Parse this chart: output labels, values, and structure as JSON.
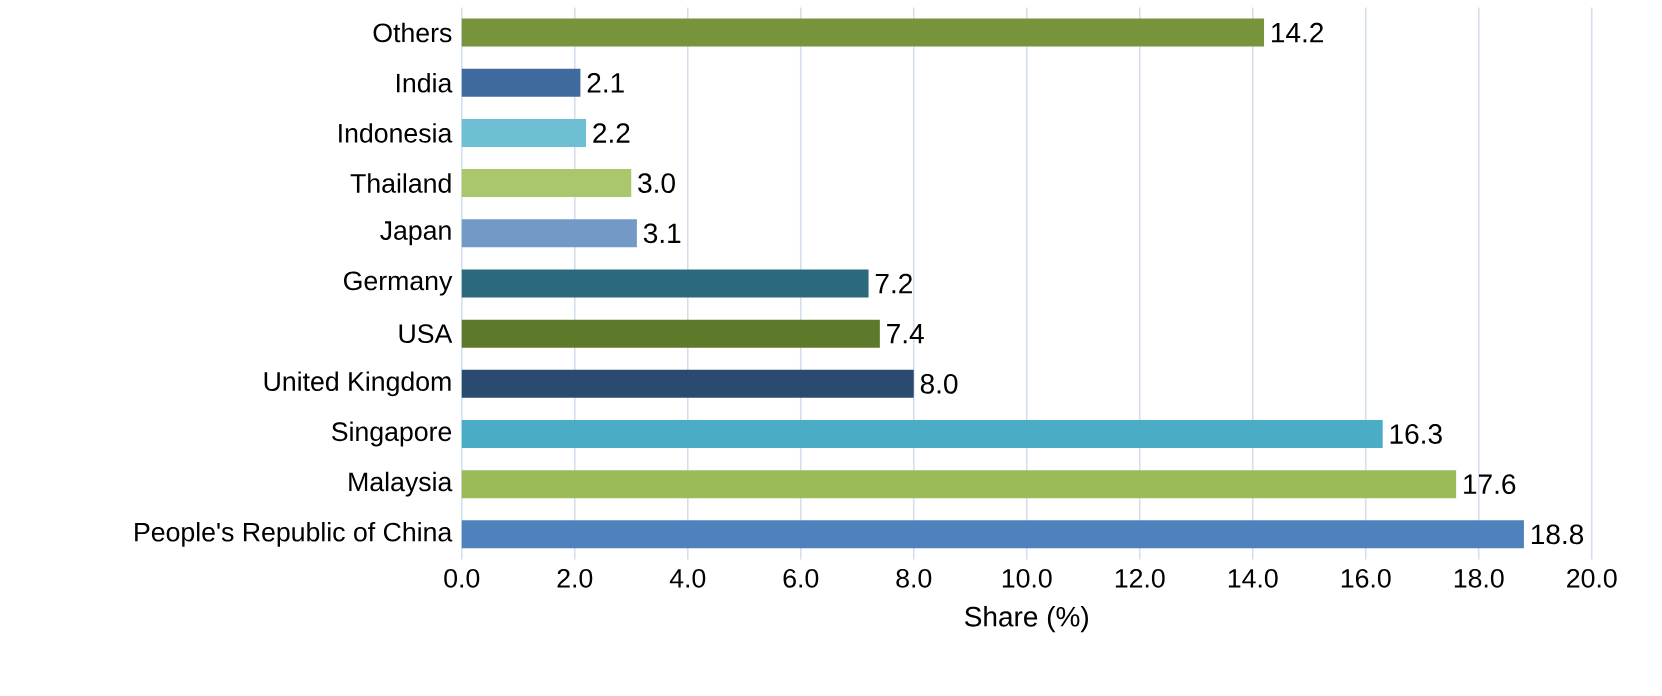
{
  "chart_data": {
    "type": "bar",
    "orientation": "horizontal",
    "xlabel": "Share (%)",
    "categories": [
      "Others",
      "India",
      "Indonesia",
      "Thailand",
      "Japan",
      "Germany",
      "USA",
      "United Kingdom",
      "Singapore",
      "Malaysia",
      "People's Republic of China"
    ],
    "values": [
      14.2,
      2.1,
      2.2,
      3.0,
      3.1,
      7.2,
      7.4,
      8.0,
      16.3,
      17.6,
      18.8
    ],
    "value_labels": [
      "14.2",
      "2.1",
      "2.2",
      "3.0",
      "3.1",
      "7.2",
      "7.4",
      "8.0",
      "16.3",
      "17.6",
      "18.8"
    ],
    "colors": [
      "#77933c",
      "#3f6a9e",
      "#6fbfd4",
      "#aac76e",
      "#7399c6",
      "#2b6a7c",
      "#5c7a2a",
      "#2a4a70",
      "#4bacc6",
      "#9bbb59",
      "#4f81bd"
    ],
    "xlim": [
      0,
      20
    ],
    "xticks": [
      {
        "value": 0,
        "label": "0.0"
      },
      {
        "value": 2,
        "label": "2.0"
      },
      {
        "value": 4,
        "label": "4.0"
      },
      {
        "value": 6,
        "label": "6.0"
      },
      {
        "value": 8,
        "label": "8.0"
      },
      {
        "value": 10,
        "label": "10.0"
      },
      {
        "value": 12,
        "label": "12.0"
      },
      {
        "value": 14,
        "label": "14.0"
      },
      {
        "value": 16,
        "label": "16.0"
      },
      {
        "value": 18,
        "label": "18.0"
      },
      {
        "value": 20,
        "label": "20.0"
      }
    ],
    "grid": "x"
  }
}
